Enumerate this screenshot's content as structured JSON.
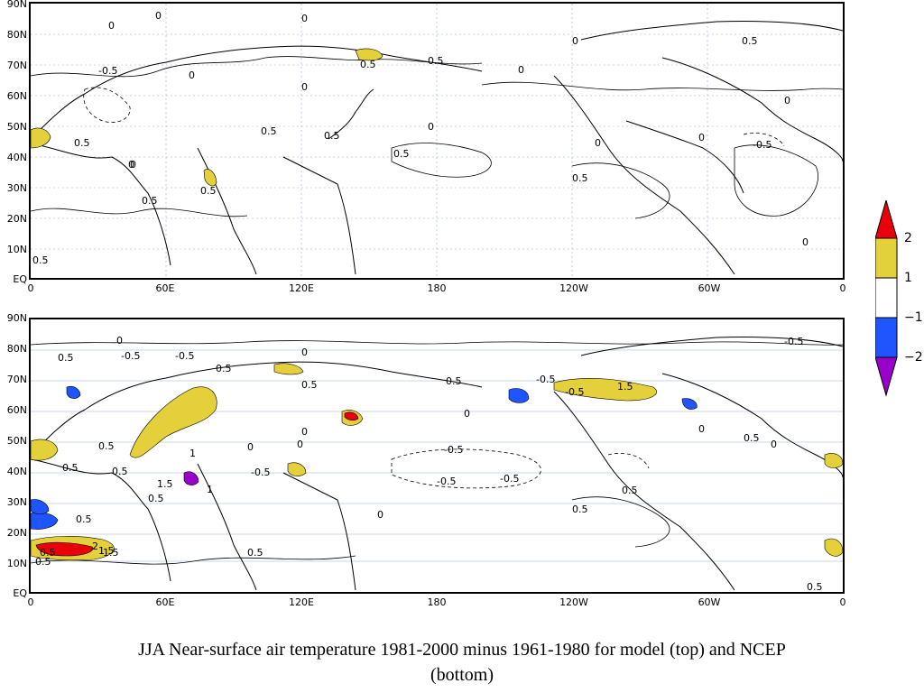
{
  "maps": [
    {
      "id": "model",
      "lat_ticks": [
        "90N",
        "80N",
        "70N",
        "60N",
        "50N",
        "40N",
        "30N",
        "20N",
        "10N",
        "EQ"
      ],
      "lon_ticks": [
        "0",
        "60E",
        "120E",
        "180",
        "120W",
        "60W",
        "0"
      ],
      "contour_labels": [
        "0",
        "0.5",
        "0",
        "0.5",
        "-0.5",
        "0",
        "0.5",
        "0",
        "0.5",
        "0",
        "0.5",
        "0",
        "0.5",
        "0",
        "0.5",
        "-0.5",
        "0",
        "0.5",
        "0.5",
        "0",
        "0.5",
        "0",
        "0",
        "0",
        "0",
        "0.5",
        "0"
      ]
    },
    {
      "id": "ncep",
      "lat_ticks": [
        "90N",
        "80N",
        "70N",
        "60N",
        "50N",
        "40N",
        "30N",
        "20N",
        "10N",
        "EQ"
      ],
      "lon_ticks": [
        "0",
        "60E",
        "120E",
        "180",
        "120W",
        "60W",
        "0"
      ],
      "contour_labels": [
        "0",
        "-0.5",
        "0.5",
        "-0.5",
        "0",
        "-0.5",
        "0.5",
        "-0.5",
        "0.5",
        "0",
        "1",
        "0.5",
        "1.5",
        "-0.5",
        "0.5",
        "1",
        "1.5",
        "-0.5",
        "-0.5",
        "-0.5",
        "0.5",
        "1.5",
        "0.5",
        "0.5",
        "0",
        "0.5",
        "0.5",
        "0.5",
        "2",
        "1.5",
        "0.5",
        "0",
        "0",
        "0.5",
        "0",
        "0.5",
        "0.5",
        "-0.5",
        "0",
        "0",
        "0.5"
      ]
    }
  ],
  "colorbar": {
    "labels": [
      "2",
      "1",
      "−1",
      "−2"
    ],
    "colors": {
      "gt2": "#e8000b",
      "1to2": "#e3d03a",
      "m1to1": "#ffffff",
      "m2tom1": "#1f55ff",
      "ltm2": "#9a00c9"
    }
  },
  "caption_line1": "JJA Near-surface air temperature 1981-2000 minus 1961-1980 for model (top) and NCEP",
  "caption_line2": "(bottom)"
}
